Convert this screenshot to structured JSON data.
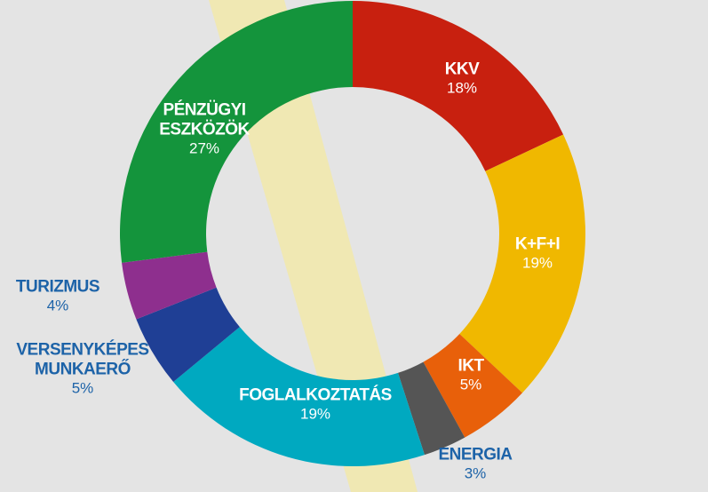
{
  "chart_data": {
    "type": "donut",
    "categories": [
      "KKV",
      "K+F+I",
      "IKT",
      "ENERGIA",
      "FOGLALKOZTATÁS",
      "VERSENYKÉPES MUNKAERŐ",
      "TURIZMUS",
      "PÉNZÜGYI ESZKÖZÖK"
    ],
    "values": [
      18,
      19,
      5,
      3,
      19,
      5,
      4,
      27
    ],
    "value_labels": [
      "18%",
      "19%",
      "5%",
      "3%",
      "19%",
      "5%",
      "4%",
      "27%"
    ],
    "colors": [
      "#c8200f",
      "#f0b800",
      "#e8600a",
      "#555555",
      "#00a9c0",
      "#1f3f95",
      "#8e2f8e",
      "#14943c"
    ]
  }
}
